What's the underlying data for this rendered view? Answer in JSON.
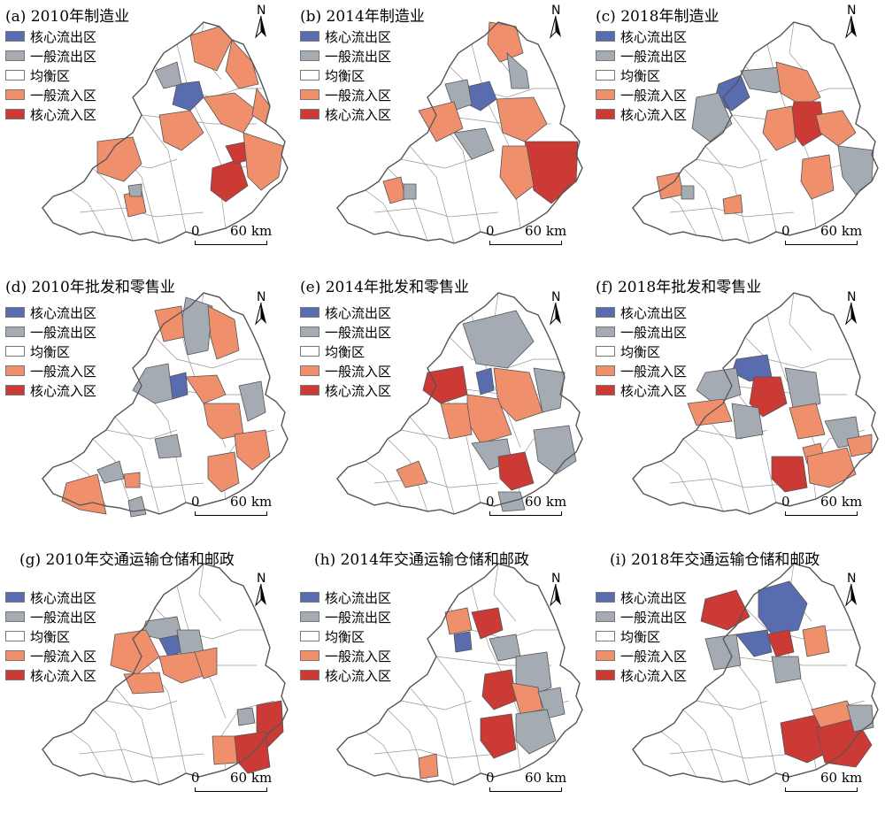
{
  "legend": {
    "items": [
      {
        "label": "核心流出区",
        "color": "#5a6cb0"
      },
      {
        "label": "一般流出区",
        "color": "#a4abb3"
      },
      {
        "label": "均衡区",
        "color": "#ffffff"
      },
      {
        "label": "一般流入区",
        "color": "#ef8f6c"
      },
      {
        "label": "核心流入区",
        "color": "#cc3a36"
      }
    ]
  },
  "north_label": "N",
  "scale": {
    "zero": "0",
    "sixty": "60 km"
  },
  "panels": [
    {
      "title": "(a) 2010年制造业"
    },
    {
      "title": "(b) 2014年制造业"
    },
    {
      "title": "(c) 2018年制造业"
    },
    {
      "title": "(d) 2010年批发和零售业"
    },
    {
      "title": "(e) 2014年批发和零售业"
    },
    {
      "title": "(f) 2018年批发和零售业"
    },
    {
      "title": "(g) 2010年交通运输仓储和邮政"
    },
    {
      "title": "(h) 2014年交通运输仓储和邮政"
    },
    {
      "title": "(i) 2018年交通运输仓储和邮政"
    }
  ]
}
